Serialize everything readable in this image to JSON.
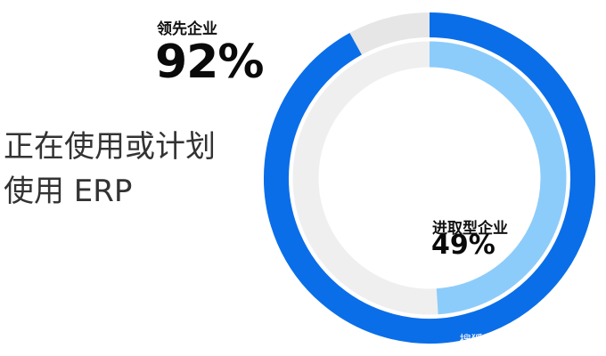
{
  "headline": {
    "line1": "正在使用或计划",
    "line2": "使用 ERP"
  },
  "watermark": "搜狐号@AcloudearSAP",
  "colors": {
    "outer": "#0a6ee8",
    "outer_track": "#e6e6e6",
    "inner": "#8cccfb",
    "inner_track": "#efefef"
  },
  "chart_data": {
    "type": "pie",
    "subtype": "concentric-donut",
    "series": [
      {
        "name": "领先企业",
        "value": 92,
        "display": "92%",
        "ring": "outer"
      },
      {
        "name": "进取型企业",
        "value": 49,
        "display": "49%",
        "ring": "inner"
      }
    ],
    "unit": "%",
    "max": 100
  }
}
